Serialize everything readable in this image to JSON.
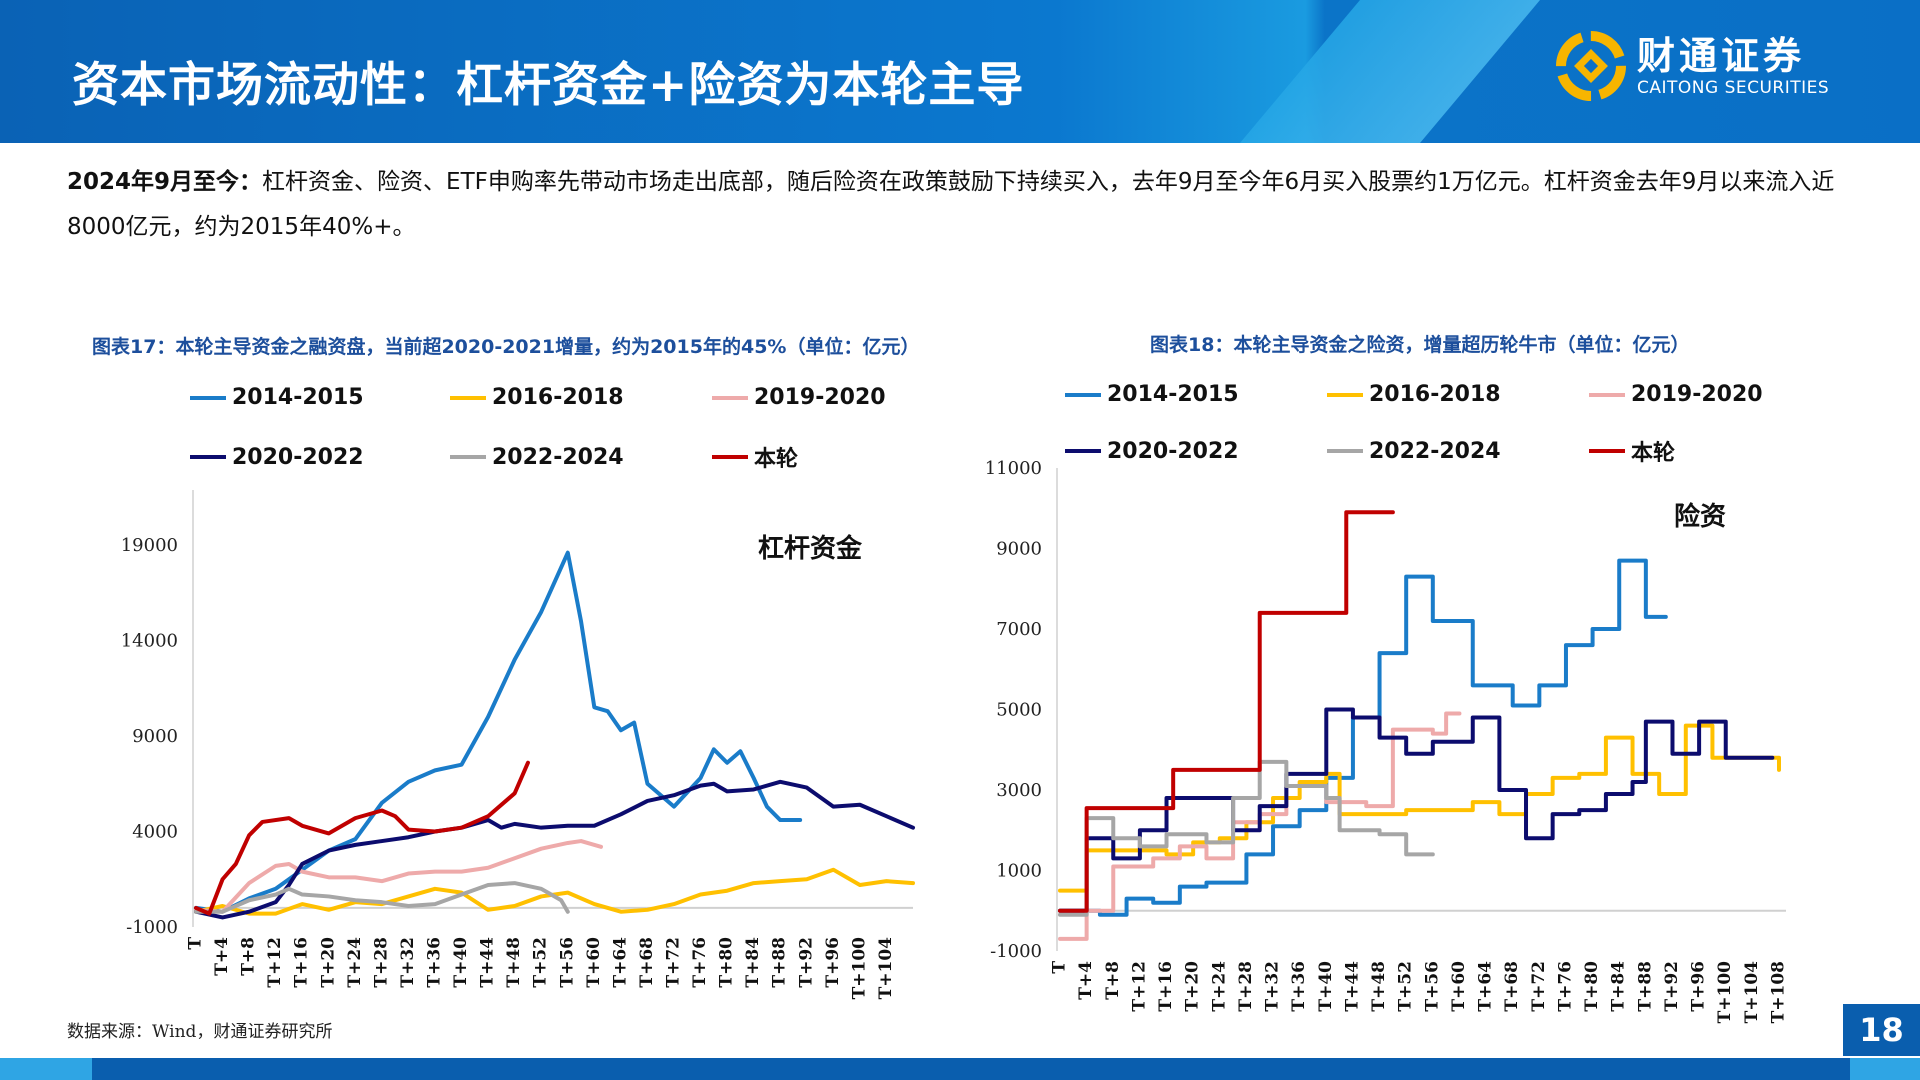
{
  "header": {
    "title": "资本市场流动性：杠杆资金+险资为本轮主导",
    "logo_cn": "财通证券",
    "logo_en": "CAITONG SECURITIES"
  },
  "intro": {
    "lead": "2024年9月至今：",
    "text": "杠杆资金、险资、ETF申购率先带动市场走出底部，随后险资在政策鼓励下持续买入，去年9月至今年6月买入股票约1万亿元。杠杆资金去年9月以来流入近8000亿元，约为2015年40%+。"
  },
  "source": "数据来源：Wind，财通证券研究所",
  "page_number": "18",
  "colors": {
    "2014-2015": "#1a7cc9",
    "2016-2018": "#ffc000",
    "2019-2020": "#eeaaaa",
    "2020-2022": "#0c0c6e",
    "2022-2024": "#a6a6a6",
    "本轮": "#c00000"
  },
  "chart_data": [
    {
      "type": "line",
      "title": "图表17：本轮主导资金之融资盘，当前超2020-2021增量，约为2015年的45%（单位：亿元）",
      "annotation": "杠杆资金",
      "ylim": [
        -1000,
        19000
      ],
      "yticks": [
        -1000,
        4000,
        9000,
        14000,
        19000
      ],
      "xtick_step": 4,
      "xmax": 108,
      "xtick_last": 104,
      "series": [
        {
          "name": "2014-2015",
          "x": [
            0,
            4,
            8,
            12,
            16,
            20,
            24,
            28,
            32,
            36,
            40,
            44,
            48,
            52,
            56,
            58,
            60,
            62,
            64,
            66,
            68,
            72,
            76,
            78,
            80,
            82,
            84,
            86,
            88,
            91
          ],
          "values": [
            0,
            -200,
            500,
            1000,
            2000,
            3000,
            3600,
            5500,
            6600,
            7200,
            7500,
            10000,
            13000,
            15500,
            18600,
            15000,
            10500,
            10300,
            9300,
            9700,
            6500,
            5300,
            6800,
            8300,
            7600,
            8200,
            6800,
            5300,
            4600,
            4600
          ]
        },
        {
          "name": "2016-2018",
          "x": [
            0,
            4,
            8,
            12,
            16,
            20,
            24,
            28,
            32,
            36,
            40,
            44,
            48,
            52,
            56,
            60,
            64,
            68,
            72,
            76,
            80,
            84,
            88,
            92,
            96,
            100,
            104,
            108
          ],
          "values": [
            -200,
            100,
            -300,
            -300,
            200,
            -100,
            300,
            200,
            600,
            1000,
            800,
            -100,
            100,
            600,
            800,
            200,
            -200,
            -100,
            200,
            700,
            900,
            1300,
            1400,
            1500,
            2000,
            1200,
            1400,
            1300
          ]
        },
        {
          "name": "2019-2020",
          "x": [
            0,
            4,
            8,
            12,
            14,
            16,
            20,
            24,
            28,
            32,
            36,
            40,
            44,
            48,
            52,
            56,
            58,
            61
          ],
          "values": [
            -100,
            -200,
            1300,
            2200,
            2300,
            1900,
            1600,
            1600,
            1400,
            1800,
            1900,
            1900,
            2100,
            2600,
            3100,
            3400,
            3500,
            3200
          ]
        },
        {
          "name": "2020-2022",
          "x": [
            0,
            4,
            8,
            12,
            14,
            16,
            20,
            24,
            28,
            32,
            36,
            40,
            44,
            46,
            48,
            52,
            56,
            60,
            64,
            68,
            72,
            76,
            78,
            80,
            84,
            88,
            92,
            96,
            100,
            104,
            108
          ],
          "values": [
            -200,
            -500,
            -200,
            300,
            1200,
            2300,
            3000,
            3300,
            3500,
            3700,
            4000,
            4200,
            4600,
            4200,
            4400,
            4200,
            4300,
            4300,
            4900,
            5600,
            5900,
            6400,
            6500,
            6100,
            6200,
            6600,
            6300,
            5300,
            5400,
            4800,
            4200
          ]
        },
        {
          "name": "2022-2024",
          "x": [
            0,
            4,
            8,
            12,
            14,
            16,
            20,
            24,
            28,
            32,
            36,
            40,
            44,
            48,
            52,
            55,
            56
          ],
          "values": [
            -200,
            -200,
            400,
            700,
            1000,
            700,
            600,
            400,
            300,
            100,
            200,
            700,
            1200,
            1300,
            1000,
            400,
            -200
          ]
        },
        {
          "name": "本轮",
          "x": [
            0,
            2,
            4,
            6,
            8,
            10,
            14,
            16,
            20,
            24,
            28,
            30,
            32,
            36,
            40,
            44,
            48,
            50
          ],
          "values": [
            0,
            -300,
            1500,
            2300,
            3800,
            4500,
            4700,
            4300,
            3900,
            4700,
            5100,
            4800,
            4100,
            4000,
            4200,
            4800,
            6000,
            7600
          ]
        }
      ]
    },
    {
      "type": "line",
      "step": true,
      "title": "图表18：本轮主导资金之险资，增量超历轮牛市（单位：亿元）",
      "annotation": "险资",
      "ylim": [
        -1000,
        11000
      ],
      "yticks": [
        -1000,
        1000,
        3000,
        5000,
        7000,
        9000,
        11000
      ],
      "xtick_step": 4,
      "xmax": 108,
      "xtick_last": 108,
      "series": [
        {
          "name": "2014-2015",
          "x": [
            0,
            6,
            10,
            14,
            18,
            22,
            28,
            32,
            36,
            40,
            44,
            48,
            52,
            56,
            62,
            68,
            72,
            76,
            80,
            84,
            88,
            91
          ],
          "values": [
            0,
            -100,
            300,
            200,
            600,
            700,
            1400,
            2100,
            2500,
            3300,
            4800,
            6400,
            8300,
            7200,
            5600,
            5100,
            5600,
            6600,
            7000,
            8700,
            7300,
            7300
          ]
        },
        {
          "name": "2016-2018",
          "x": [
            0,
            4,
            16,
            20,
            24,
            28,
            32,
            36,
            40,
            42,
            48,
            52,
            58,
            62,
            66,
            70,
            74,
            78,
            82,
            86,
            90,
            94,
            98,
            104,
            108
          ],
          "values": [
            500,
            1500,
            1400,
            1700,
            1800,
            2200,
            2800,
            3200,
            3400,
            2400,
            2400,
            2500,
            2500,
            2700,
            2400,
            2900,
            3300,
            3400,
            4300,
            3400,
            2900,
            4600,
            3800,
            3800,
            3500
          ]
        },
        {
          "name": "2019-2020",
          "x": [
            0,
            4,
            8,
            14,
            18,
            22,
            26,
            30,
            34,
            40,
            46,
            50,
            56,
            58,
            60
          ],
          "values": [
            -700,
            0,
            1100,
            1300,
            1600,
            1300,
            2200,
            2400,
            3100,
            2700,
            2600,
            4500,
            4400,
            4900,
            4900
          ]
        },
        {
          "name": "2020-2022",
          "x": [
            0,
            4,
            8,
            12,
            16,
            22,
            26,
            30,
            34,
            40,
            44,
            48,
            52,
            56,
            62,
            66,
            70,
            74,
            78,
            82,
            86,
            88,
            92,
            96,
            100,
            104,
            107
          ],
          "values": [
            0,
            1800,
            1300,
            2000,
            2800,
            2800,
            2000,
            2600,
            3400,
            5000,
            4800,
            4300,
            3900,
            4200,
            4800,
            3000,
            1800,
            2400,
            2500,
            2900,
            3200,
            4700,
            3900,
            4700,
            3800,
            3800,
            3800
          ]
        },
        {
          "name": "2022-2024",
          "x": [
            0,
            4,
            8,
            12,
            16,
            22,
            26,
            30,
            34,
            40,
            42,
            48,
            52,
            56
          ],
          "values": [
            -100,
            2300,
            1800,
            1600,
            1900,
            1700,
            2800,
            3700,
            3100,
            2800,
            2000,
            1900,
            1400,
            1400
          ]
        },
        {
          "name": "本轮",
          "x": [
            0,
            4,
            17,
            30,
            43,
            50
          ],
          "values": [
            0,
            2550,
            3500,
            7400,
            9900,
            9900
          ]
        }
      ]
    }
  ]
}
